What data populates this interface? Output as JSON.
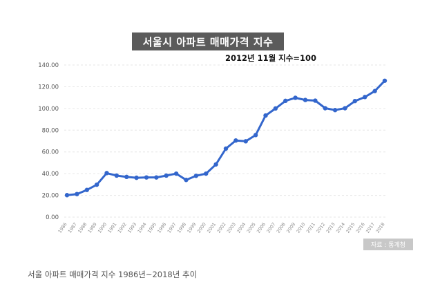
{
  "chart_data": {
    "type": "line",
    "title": "서울시 아파트 매매가격 지수",
    "subtitle": "2012년 11월 지수=100",
    "source": "자료 : 통계청",
    "xlabel": "",
    "ylabel": "",
    "ylim": [
      0,
      140
    ],
    "yticks": [
      "0.00",
      "20.00",
      "40.00",
      "60.00",
      "80.00",
      "100.00",
      "120.00",
      "140.00"
    ],
    "categories": [
      "1986",
      "1987",
      "1988",
      "1989",
      "1990",
      "1991",
      "1992",
      "1993",
      "1994",
      "1995",
      "1996",
      "1997",
      "1998",
      "1999",
      "2000",
      "2001",
      "2002",
      "2003",
      "2004",
      "2005",
      "2006",
      "2007",
      "2008",
      "2009",
      "2010",
      "2011",
      "2012",
      "2013",
      "2014",
      "2015",
      "2016",
      "2017",
      "2018"
    ],
    "series": [
      {
        "name": "서울시 아파트 매매가격 지수",
        "color": "#3366cc",
        "values": [
          20.2,
          21.2,
          25.0,
          29.8,
          40.5,
          38.2,
          37.0,
          36.2,
          36.5,
          36.5,
          38.2,
          40.0,
          34.2,
          38.0,
          40.0,
          48.5,
          63.0,
          70.5,
          69.8,
          75.5,
          93.5,
          100.0,
          107.0,
          109.8,
          107.8,
          107.2,
          100.2,
          98.5,
          100.2,
          106.8,
          110.5,
          116.0,
          125.5
        ]
      }
    ],
    "grid": true,
    "legend": "none"
  },
  "caption": "서울 아파트 매매가격 지수 1986년~2018년 추이",
  "colors": {
    "line": "#3366cc",
    "grid": "#e6e6e6",
    "title_bg": "#5b5b5b"
  }
}
